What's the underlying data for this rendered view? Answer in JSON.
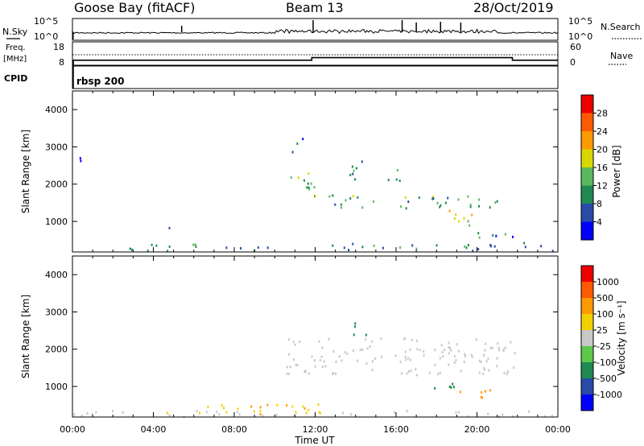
{
  "header": {
    "station": "Goose Bay (fitACF)",
    "beam": "Beam 13",
    "date": "28/Oct/2019"
  },
  "sky_panel": {
    "label_left": "N.Sky",
    "label_right": "N.Search",
    "tick_top": "10^5",
    "tick_bottom": "10^0"
  },
  "freq_panel": {
    "label_line1": "Freq.",
    "label_line2": "[MHz]",
    "label_right": "Nave",
    "left_ticks": [
      "18",
      "8"
    ],
    "right_ticks": [
      "60",
      "0"
    ]
  },
  "cpid_panel": {
    "label": "CPID",
    "program": "rbsp 200"
  },
  "axis_x": {
    "label": "Time UT",
    "ticks": [
      "00:00",
      "04:00",
      "08:00",
      "12:00",
      "16:00",
      "20:00",
      "00:00"
    ]
  },
  "power_panel": {
    "ylabel": "Slant Range [km]",
    "yticks": [
      "1000",
      "2000",
      "3000",
      "4000"
    ],
    "colorbar_label": "Power [dB]",
    "colorbar_ticks": [
      "4",
      "8",
      "12",
      "16",
      "20",
      "24",
      "28"
    ],
    "colors": [
      "#0000ff",
      "#2a4aa8",
      "#1f8a52",
      "#5cb85c",
      "#d8d800",
      "#ff9900",
      "#ff5a00",
      "#ee0000"
    ]
  },
  "velocity_panel": {
    "ylabel": "Slant Range [km]",
    "yticks": [
      "1000",
      "2000",
      "3000",
      "4000"
    ],
    "colorbar_label": "Velocity [m s⁻¹]",
    "colorbar_ticks": [
      "1000",
      "500",
      "100",
      "25",
      "-25",
      "-100",
      "-500",
      "-1000"
    ],
    "colors": [
      "#0000ff",
      "#2a4aa8",
      "#1f8a52",
      "#5cc94a",
      "#c8c8c8",
      "#f2d000",
      "#ff9900",
      "#ff5a00",
      "#ee0000"
    ],
    "ground_scatter_color": "#c8c8c8"
  },
  "chart_data": {
    "type": "heatmap",
    "title": "Goose Bay (fitACF) Beam 13 28/Oct/2019",
    "xlabel": "Time UT",
    "ylabel": "Slant Range [km]",
    "xlim": [
      "00:00",
      "24:00"
    ],
    "ylim": [
      180,
      4500
    ],
    "cpid": "rbsp 200",
    "frequency_mhz": [
      {
        "from": "00:00",
        "to": "11:50",
        "value": 10
      },
      {
        "from": "11:50",
        "to": "21:45",
        "value": 12
      },
      {
        "from": "21:45",
        "to": "24:00",
        "value": 10
      }
    ],
    "nave": 12,
    "power_regions": [
      {
        "time": [
          "00:00",
          "23:50"
        ],
        "range": [
          200,
          400
        ],
        "power_db": 9,
        "density": 0.35
      },
      {
        "time": [
          "10:45",
          "12:00"
        ],
        "range": [
          1400,
          2300
        ],
        "power_db": 14,
        "density": 0.5
      },
      {
        "time": [
          "13:30",
          "14:30"
        ],
        "range": [
          2100,
          2700
        ],
        "power_db": 11,
        "density": 0.5
      },
      {
        "time": [
          "12:30",
          "21:00"
        ],
        "range": [
          1350,
          1700
        ],
        "power_db": 12,
        "density": 0.5
      },
      {
        "time": [
          "15:30",
          "16:15"
        ],
        "range": [
          2000,
          2500
        ],
        "power_db": 12,
        "density": 0.5
      },
      {
        "time": [
          "18:15",
          "19:45"
        ],
        "range": [
          800,
          1300
        ],
        "power_db": 16,
        "density": 0.45
      },
      {
        "time": [
          "20:00",
          "22:30"
        ],
        "range": [
          400,
          700
        ],
        "power_db": 8,
        "density": 0.4
      },
      {
        "time": [
          "00:10",
          "00:40"
        ],
        "range": [
          2600,
          2900
        ],
        "power_db": 5,
        "density": 0.5
      },
      {
        "time": [
          "04:45",
          "05:15"
        ],
        "range": [
          700,
          1000
        ],
        "power_db": 7,
        "density": 0.4
      },
      {
        "time": [
          "10:45",
          "11:30"
        ],
        "range": [
          2800,
          3300
        ],
        "power_db": 7,
        "density": 0.3
      }
    ],
    "velocity_regions": [
      {
        "time": [
          "10:30",
          "22:00"
        ],
        "range": [
          1300,
          2300
        ],
        "velocity_ms": 0,
        "ground_scatter": true,
        "density": 0.5
      },
      {
        "time": [
          "13:30",
          "14:30"
        ],
        "range": [
          2300,
          2700
        ],
        "velocity_ms": 200,
        "density": 0.5
      },
      {
        "time": [
          "17:30",
          "19:00"
        ],
        "range": [
          800,
          1100
        ],
        "velocity_ms": 150,
        "density": 0.45
      },
      {
        "time": [
          "19:00",
          "21:00"
        ],
        "range": [
          600,
          900
        ],
        "velocity_ms": -150,
        "density": 0.45
      },
      {
        "time": [
          "04:30",
          "12:30"
        ],
        "range": [
          250,
          550
        ],
        "velocity_ms": -80,
        "density": 0.45
      },
      {
        "time": [
          "00:00",
          "23:50"
        ],
        "range": [
          180,
          350
        ],
        "velocity_ms": 0,
        "ground_scatter": true,
        "density": 0.35
      }
    ]
  }
}
